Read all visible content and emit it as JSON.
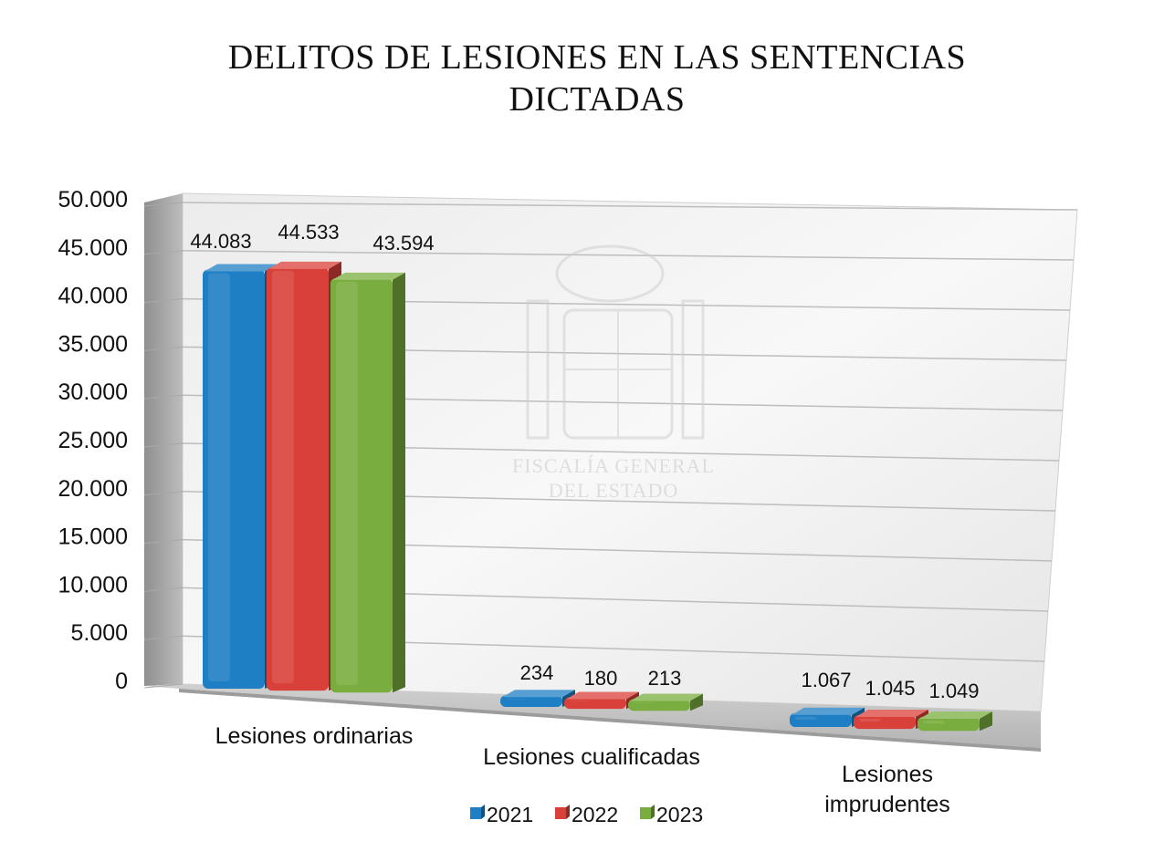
{
  "title": {
    "line1": "DELITOS DE LESIONES EN LAS SENTENCIAS",
    "line2": "DICTADAS"
  },
  "watermark": {
    "line1": "FISCALÍA GENERAL",
    "line2": "DEL ESTADO"
  },
  "chart_data": {
    "type": "bar",
    "style": "3d-clustered",
    "title": "DELITOS DE LESIONES EN LAS SENTENCIAS DICTADAS",
    "categories": [
      "Lesiones ordinarias",
      "Lesiones cualificadas",
      "Lesiones imprudentes"
    ],
    "category_labels": [
      [
        "Lesiones ordinarias"
      ],
      [
        "Lesiones cualificadas"
      ],
      [
        "Lesiones",
        "imprudentes"
      ]
    ],
    "series": [
      {
        "name": "2021",
        "color": "#1f7fc4",
        "values": [
          44083,
          234,
          1067
        ],
        "labels": [
          "44.083",
          "234",
          "1.067"
        ]
      },
      {
        "name": "2022",
        "color": "#d9403a",
        "values": [
          44533,
          180,
          1045
        ],
        "labels": [
          "44.533",
          "180",
          "1.045"
        ]
      },
      {
        "name": "2023",
        "color": "#7aad3f",
        "values": [
          43594,
          213,
          1049
        ],
        "labels": [
          "43.594",
          "213",
          "1.049"
        ]
      }
    ],
    "yticks": [
      "0",
      "5.000",
      "10.000",
      "15.000",
      "20.000",
      "25.000",
      "30.000",
      "35.000",
      "40.000",
      "45.000",
      "50.000"
    ],
    "ylim": [
      0,
      50000
    ],
    "grid": true,
    "legend": "bottom"
  }
}
